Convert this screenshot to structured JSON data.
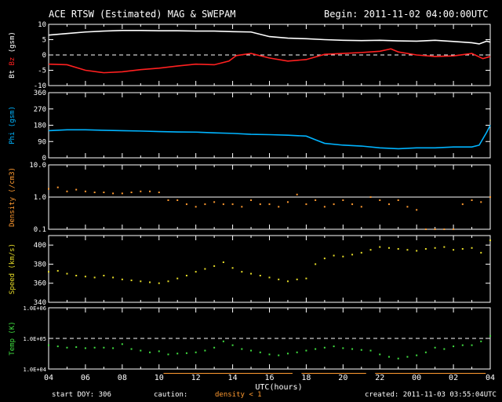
{
  "header": {
    "title": "ACE RTSW (Estimated) MAG & SWEPAM",
    "begin": "Begin: 2011-11-02 04:00:00UTC"
  },
  "footer": {
    "start_doy": "start DOY: 306",
    "caution": "caution:",
    "density_note": "density < 1",
    "created": "created: 2011-11-03 03:55:04UTC"
  },
  "colors": {
    "bt": "#ffffff",
    "bz": "#ff2020",
    "phi": "#00b4ff",
    "density": "#ff9a30",
    "speed": "#e6dc28",
    "temp": "#40e040",
    "axis": "#ffffff",
    "background": "#000000"
  },
  "chart_data": [
    {
      "type": "line",
      "panel": "magnetic field",
      "ylabel_parts": [
        "Bt",
        "Bz",
        "(gsm)"
      ],
      "yticks": [
        "10",
        "5",
        "0",
        "-5",
        "-10"
      ],
      "ylim": [
        -10,
        10
      ],
      "reference_line": 0,
      "x_range_hours": [
        4,
        28
      ],
      "series": [
        {
          "name": "Bt",
          "x": [
            4.0,
            5.0,
            6.0,
            7.0,
            8.0,
            9.0,
            10.0,
            11.0,
            12.0,
            13.0,
            14.0,
            15.0,
            16.0,
            17.0,
            18.0,
            19.0,
            20.0,
            21.0,
            22.0,
            23.0,
            24.0,
            25.0,
            26.0,
            27.0,
            27.4,
            27.8,
            28.0
          ],
          "y": [
            6.5,
            7.0,
            7.5,
            7.8,
            8.0,
            8.0,
            7.9,
            7.9,
            7.8,
            7.8,
            7.6,
            7.5,
            6.0,
            5.5,
            5.3,
            5.0,
            4.8,
            4.7,
            4.8,
            4.6,
            4.5,
            4.8,
            4.4,
            4.0,
            3.6,
            4.5,
            4.2
          ]
        },
        {
          "name": "Bz",
          "x": [
            4.0,
            5.0,
            6.0,
            7.0,
            8.0,
            9.0,
            10.0,
            11.0,
            12.0,
            13.0,
            13.8,
            14.2,
            15.0,
            16.0,
            17.0,
            18.0,
            19.0,
            20.0,
            21.0,
            22.0,
            22.6,
            23.0,
            24.0,
            25.0,
            26.0,
            27.0,
            27.6,
            28.0
          ],
          "y": [
            -3.0,
            -3.2,
            -5.0,
            -5.8,
            -5.5,
            -4.8,
            -4.3,
            -3.6,
            -3.0,
            -3.2,
            -2.0,
            -0.2,
            0.5,
            -1.0,
            -2.0,
            -1.5,
            0.2,
            0.5,
            0.8,
            1.2,
            2.0,
            1.0,
            0.0,
            -0.5,
            -0.3,
            0.5,
            -1.2,
            -0.5
          ]
        }
      ]
    },
    {
      "type": "line",
      "panel": "phi",
      "ylabel_parts": [
        "Phi",
        "(gsm)"
      ],
      "yticks": [
        "360",
        "270",
        "180",
        "90",
        "0"
      ],
      "ylim": [
        0,
        360
      ],
      "x_range_hours": [
        4,
        28
      ],
      "series": [
        {
          "name": "Phi",
          "x": [
            4.0,
            5.0,
            6.0,
            7.0,
            8.0,
            9.0,
            10.0,
            11.0,
            12.0,
            13.0,
            14.0,
            15.0,
            16.0,
            17.0,
            18.0,
            18.5,
            19.0,
            20.0,
            21.0,
            22.0,
            23.0,
            24.0,
            25.0,
            26.0,
            27.0,
            27.4,
            27.8,
            28.0
          ],
          "y": [
            150,
            155,
            155,
            152,
            150,
            148,
            145,
            143,
            142,
            138,
            135,
            130,
            128,
            125,
            120,
            100,
            80,
            70,
            65,
            55,
            50,
            55,
            55,
            60,
            60,
            70,
            140,
            180
          ]
        }
      ]
    },
    {
      "type": "scatter",
      "panel": "density",
      "ylabel_parts": [
        "Density",
        "(/cm3)"
      ],
      "yticks": [
        "10.0",
        "1.0",
        "0.1"
      ],
      "ylim": [
        0.1,
        10
      ],
      "yscale": "log",
      "reference_line": 1.0,
      "x_range_hours": [
        4,
        28
      ],
      "series": [
        {
          "name": "Density",
          "x": [
            4.0,
            4.5,
            5.0,
            5.5,
            6.0,
            6.5,
            7.0,
            7.5,
            8.0,
            8.5,
            9.0,
            9.5,
            10.0,
            10.5,
            11.0,
            11.5,
            12.0,
            12.5,
            13.0,
            13.5,
            14.0,
            14.5,
            15.0,
            15.5,
            16.0,
            16.5,
            17.0,
            17.5,
            18.0,
            18.5,
            19.0,
            19.5,
            20.0,
            20.5,
            21.0,
            21.5,
            22.0,
            22.5,
            23.0,
            23.5,
            24.0,
            24.5,
            25.0,
            25.5,
            26.0,
            26.5,
            27.0,
            27.5,
            28.0
          ],
          "y": [
            1.8,
            2.0,
            1.5,
            1.7,
            1.5,
            1.4,
            1.4,
            1.3,
            1.3,
            1.4,
            1.5,
            1.5,
            1.4,
            0.8,
            0.8,
            0.6,
            0.5,
            0.6,
            0.7,
            0.6,
            0.6,
            0.5,
            0.8,
            0.6,
            0.6,
            0.5,
            0.7,
            1.2,
            0.6,
            0.8,
            0.5,
            0.6,
            0.8,
            0.6,
            0.5,
            1.0,
            0.8,
            0.6,
            0.8,
            0.5,
            0.4,
            0.1,
            0.1,
            0.1,
            0.1,
            0.6,
            0.8,
            0.7,
            1.0
          ]
        }
      ]
    },
    {
      "type": "scatter",
      "panel": "speed",
      "ylabel_parts": [
        "Speed",
        "(km/s)"
      ],
      "yticks": [
        "400",
        "380",
        "360",
        "340"
      ],
      "ylim": [
        340,
        410
      ],
      "x_range_hours": [
        4,
        28
      ],
      "series": [
        {
          "name": "Speed",
          "x": [
            4.0,
            4.5,
            5.0,
            5.5,
            6.0,
            6.5,
            7.0,
            7.5,
            8.0,
            8.5,
            9.0,
            9.5,
            10.0,
            10.5,
            11.0,
            11.5,
            12.0,
            12.5,
            13.0,
            13.5,
            14.0,
            14.5,
            15.0,
            15.5,
            16.0,
            16.5,
            17.0,
            17.5,
            18.0,
            18.5,
            19.0,
            19.5,
            20.0,
            20.5,
            21.0,
            21.5,
            22.0,
            22.5,
            23.0,
            23.5,
            24.0,
            24.5,
            25.0,
            25.5,
            26.0,
            26.5,
            27.0,
            27.5,
            28.0
          ],
          "y": [
            372,
            373,
            370,
            368,
            367,
            366,
            368,
            366,
            364,
            363,
            362,
            361,
            360,
            362,
            365,
            368,
            372,
            375,
            378,
            382,
            376,
            372,
            370,
            368,
            366,
            364,
            362,
            364,
            365,
            380,
            386,
            389,
            388,
            390,
            392,
            395,
            398,
            397,
            396,
            395,
            394,
            396,
            397,
            398,
            395,
            396,
            397,
            392,
            405
          ]
        }
      ]
    },
    {
      "type": "scatter",
      "panel": "temperature",
      "ylabel_parts": [
        "Temp",
        "(K)"
      ],
      "yticks": [
        "1.0E+06",
        "1.0E+05",
        "1.0E+04"
      ],
      "ylim": [
        10000,
        1000000
      ],
      "yscale": "log",
      "reference_line": 100000,
      "x_range_hours": [
        4,
        28
      ],
      "xticks": [
        "04",
        "06",
        "08",
        "10",
        "12",
        "14",
        "16",
        "18",
        "20",
        "22",
        "00",
        "02",
        "04"
      ],
      "xlabel": "UTC(hours)",
      "series": [
        {
          "name": "Temp",
          "x": [
            4.0,
            4.5,
            5.0,
            5.5,
            6.0,
            6.5,
            7.0,
            7.5,
            8.0,
            8.5,
            9.0,
            9.5,
            10.0,
            10.5,
            11.0,
            11.5,
            12.0,
            12.5,
            13.0,
            13.5,
            14.0,
            14.5,
            15.0,
            15.5,
            16.0,
            16.5,
            17.0,
            17.5,
            18.0,
            18.5,
            19.0,
            19.5,
            20.0,
            20.5,
            21.0,
            21.5,
            22.0,
            22.5,
            23.0,
            23.5,
            24.0,
            24.5,
            25.0,
            25.5,
            26.0,
            26.5,
            27.0,
            27.5,
            28.0
          ],
          "y": [
            60000,
            55000,
            50000,
            52000,
            48000,
            50000,
            50000,
            48000,
            65000,
            45000,
            40000,
            35000,
            38000,
            30000,
            32000,
            33000,
            35000,
            40000,
            50000,
            80000,
            60000,
            45000,
            40000,
            35000,
            30000,
            28000,
            32000,
            35000,
            40000,
            45000,
            50000,
            55000,
            48000,
            45000,
            42000,
            40000,
            30000,
            25000,
            22000,
            25000,
            28000,
            35000,
            50000,
            45000,
            55000,
            60000,
            60000,
            80000,
            120000
          ]
        }
      ]
    }
  ]
}
